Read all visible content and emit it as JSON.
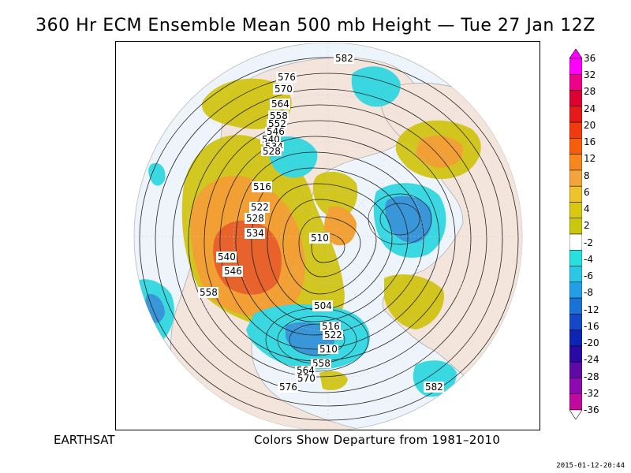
{
  "title": "360 Hr ECM Ensemble Mean 500 mb Height — Tue 27 Jan 12Z",
  "footer": {
    "source": "EARTHSAT",
    "caption": "Colors Show Departure from 1981–2010",
    "timestamp": "2015-01-12-20:44"
  },
  "contour_labels": [
    "576",
    "570",
    "564",
    "558",
    "552",
    "546",
    "540",
    "534",
    "528",
    "516",
    "522",
    "528",
    "534",
    "540",
    "546",
    "558",
    "510",
    "504",
    "516",
    "522",
    "510",
    "558",
    "564",
    "570",
    "576",
    "582",
    "582"
  ],
  "colorbar": {
    "labels": [
      "36",
      "32",
      "28",
      "24",
      "20",
      "16",
      "12",
      "8",
      "6",
      "4",
      "2",
      "-2",
      "-4",
      "-6",
      "-8",
      "-12",
      "-16",
      "-20",
      "-24",
      "-28",
      "-32",
      "-36"
    ],
    "colors": [
      "#ff00ff",
      "#ee0088",
      "#dd0033",
      "#e61a1a",
      "#f23b0c",
      "#f65e0e",
      "#f7861c",
      "#f2a53a",
      "#eec22a",
      "#d9c710",
      "#c8c80c",
      "#ffffff",
      "#28e0e0",
      "#2bc8e6",
      "#229ee6",
      "#1b72d6",
      "#1548c8",
      "#0e24b5",
      "#2a0aa5",
      "#5e0aa8",
      "#8c0ab0",
      "#c00a9c"
    ]
  },
  "colors": {
    "land": "#f3e4dc",
    "ocean": "#eef4fb",
    "strong_positive": "#e8581e",
    "positive": "#f29a26",
    "weak_positive": "#ccc40e",
    "negative": "#2bd6e0",
    "strong_negative": "#2a8fd6"
  }
}
